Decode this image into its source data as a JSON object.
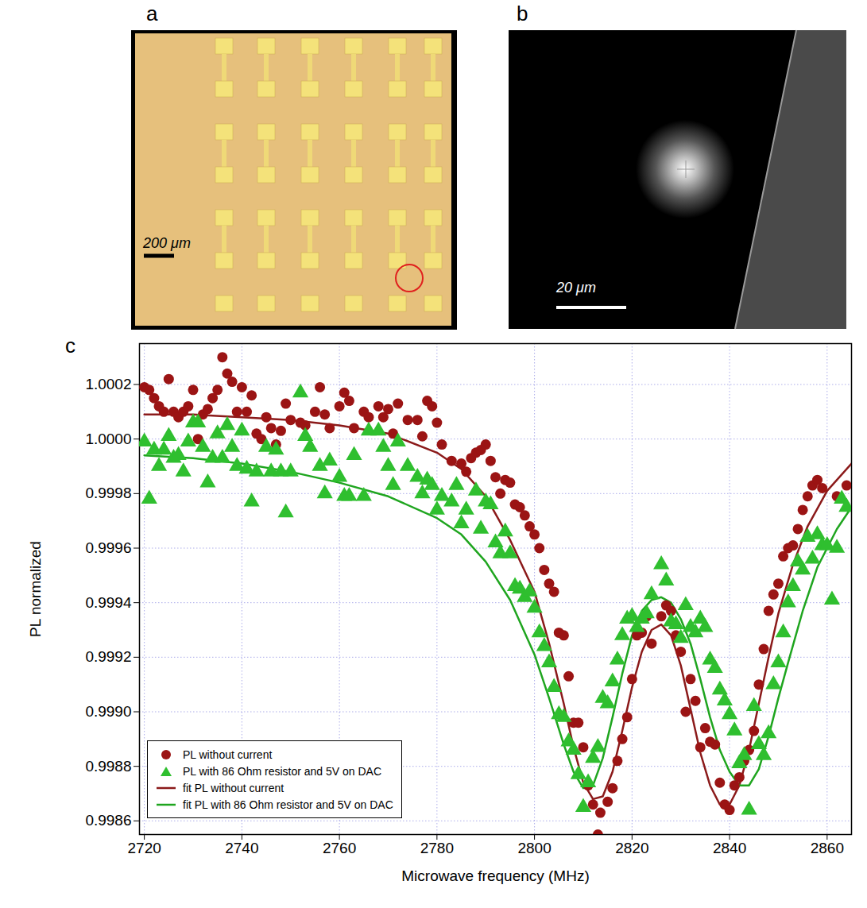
{
  "panels": [
    {
      "panel_label": "a",
      "scale_bar": "200 μm"
    },
    {
      "panel_label": "b",
      "scale_bar": "20 μm"
    }
  ],
  "chart_data": {
    "type": "scatter",
    "panel_label": "c",
    "x_label": "Microwave frequency (MHz)",
    "y_label": "PL normalized",
    "xlim": [
      2719,
      2865
    ],
    "ylim": [
      0.99855,
      1.00035
    ],
    "xticks": [
      2720,
      2740,
      2760,
      2780,
      2800,
      2820,
      2840,
      2860
    ],
    "yticks": [
      0.9986,
      0.9988,
      {
        "value": 0.999,
        "label": "0.9990"
      },
      0.9992,
      0.9994,
      0.9996,
      0.9998,
      {
        "value": 1,
        "label": "1.0000"
      },
      1.0002
    ],
    "grid": true,
    "legend": "lower left",
    "series": [
      {
        "name": "PL without current",
        "type": "scatter",
        "marker": "circle",
        "color": "#9b1414",
        "x": [
          2720,
          2721,
          2722,
          2723,
          2724,
          2725,
          2726,
          2727,
          2728,
          2729,
          2730,
          2731,
          2732,
          2733,
          2734,
          2735,
          2736,
          2737,
          2738,
          2739,
          2740,
          2741,
          2742,
          2743,
          2744,
          2745,
          2746,
          2747,
          2748,
          2749,
          2750,
          2752,
          2753,
          2755,
          2756,
          2757,
          2758,
          2760,
          2761,
          2762,
          2763,
          2765,
          2766,
          2768,
          2769,
          2770,
          2771,
          2772,
          2774,
          2776,
          2777,
          2778,
          2779,
          2780,
          2781,
          2783,
          2785,
          2786,
          2787,
          2788,
          2789,
          2790,
          2791,
          2792,
          2793,
          2794,
          2795,
          2796,
          2797,
          2798,
          2799,
          2800,
          2801,
          2802,
          2803,
          2804,
          2805,
          2806,
          2807,
          2808,
          2809,
          2810,
          2811,
          2812,
          2813,
          2813.5,
          2815,
          2816,
          2817,
          2818,
          2819,
          2820,
          2821,
          2822,
          2823,
          2824,
          2826,
          2827,
          2828,
          2829,
          2830,
          2831,
          2832,
          2833,
          2834,
          2835,
          2836,
          2837,
          2838,
          2839,
          2840,
          2841,
          2842,
          2843,
          2844,
          2845,
          2846,
          2847,
          2848,
          2849,
          2850,
          2851,
          2852,
          2853,
          2854,
          2855,
          2856,
          2857,
          2858,
          2859,
          2862,
          2864
        ],
        "values": [
          1.00019,
          1.00018,
          1.00015,
          1.00012,
          1.0001,
          1.00022,
          1.0001,
          1.00008,
          1.0001,
          1.00012,
          1.00018,
          1.0,
          1.00009,
          1.00011,
          1.00015,
          1.00018,
          1.0003,
          1.00024,
          1.00021,
          1.0001,
          1.00019,
          1.0001,
          1.00016,
          1.00002,
          1.0,
          1.00008,
          1.00004,
          0.99998,
          1.00003,
          1.00013,
          1.00007,
          1.00006,
          1.00005,
          1.0001,
          1.00019,
          1.00009,
          1.00004,
          1.00012,
          1.00017,
          1.00014,
          1.00004,
          1.0001,
          1.00008,
          1.00012,
          1.00008,
          1.00011,
          1.00002,
          1.00013,
          1.00007,
          1.00007,
          1.00001,
          1.00014,
          1.00012,
          1.00006,
          0.99998,
          0.99992,
          0.99991,
          0.99988,
          0.99993,
          0.99995,
          0.99996,
          0.99998,
          0.99992,
          0.99986,
          0.9998,
          0.99985,
          0.99984,
          0.99976,
          0.99975,
          0.99972,
          0.99968,
          0.99965,
          0.9996,
          0.99952,
          0.99947,
          0.99944,
          0.99929,
          0.99928,
          0.99913,
          0.99896,
          0.99896,
          0.99887,
          0.99873,
          0.99866,
          0.99855,
          0.99863,
          0.99867,
          0.99872,
          0.99882,
          0.9989,
          0.99898,
          0.99912,
          0.99928,
          0.99929,
          0.99935,
          0.99925,
          0.99935,
          0.99939,
          0.99937,
          0.99928,
          0.99922,
          0.999,
          0.99912,
          0.99904,
          0.99887,
          0.99894,
          0.99889,
          0.99888,
          0.99874,
          0.99866,
          0.99864,
          0.99873,
          0.99876,
          0.99882,
          0.99886,
          0.99893,
          0.9991,
          0.99923,
          0.99937,
          0.99943,
          0.99947,
          0.99957,
          0.9996,
          0.99961,
          0.99967,
          0.99974,
          0.99979,
          0.99983,
          0.99985,
          0.99982,
          0.99979,
          0.99983
        ]
      },
      {
        "name": "PL with 86 Ohm resistor and 5V on DAC",
        "type": "scatter",
        "marker": "triangle",
        "color": "#2fbf2f",
        "x": [
          2720,
          2721,
          2722,
          2723,
          2724,
          2725,
          2726,
          2727,
          2728,
          2729,
          2730,
          2731,
          2732,
          2733,
          2734,
          2735,
          2736,
          2737,
          2738,
          2739,
          2740,
          2741,
          2742,
          2743,
          2745,
          2746,
          2747,
          2748,
          2749,
          2750,
          2752,
          2753,
          2754,
          2756,
          2757,
          2758,
          2760,
          2761,
          2762,
          2763,
          2765,
          2766,
          2768,
          2769,
          2770,
          2771,
          2772,
          2774,
          2776,
          2777,
          2778,
          2779,
          2780,
          2781,
          2783,
          2784,
          2785,
          2786,
          2788,
          2789,
          2790,
          2791,
          2792,
          2793,
          2794,
          2795,
          2796,
          2797,
          2798,
          2799,
          2800,
          2801,
          2802,
          2803,
          2804,
          2805,
          2806,
          2807,
          2808,
          2809,
          2810,
          2811,
          2812,
          2813,
          2814,
          2815,
          2816,
          2817,
          2818,
          2819,
          2820,
          2821,
          2822,
          2823,
          2824,
          2826,
          2827,
          2828,
          2829,
          2830,
          2831,
          2832,
          2833,
          2834,
          2835,
          2836,
          2837,
          2838,
          2839,
          2840,
          2841,
          2842,
          2843,
          2844,
          2845,
          2846,
          2847,
          2848,
          2849,
          2850,
          2851,
          2852,
          2853,
          2854,
          2855,
          2856,
          2857,
          2858,
          2859,
          2860,
          2861,
          2862,
          2863,
          2864
        ],
        "values": [
          0.99999,
          0.99978,
          0.99996,
          0.9999,
          0.99996,
          1.00001,
          0.99993,
          0.99994,
          0.99988,
          0.99999,
          1.00006,
          1.00006,
          0.99997,
          0.99984,
          0.99993,
          1.00002,
          0.99993,
          1.00005,
          0.99997,
          0.9999,
          1.00003,
          0.99989,
          0.99977,
          0.99988,
          0.99997,
          0.99988,
          0.99996,
          0.99988,
          0.99973,
          0.99988,
          1.00017,
          1.00001,
          0.99997,
          0.9999,
          0.9998,
          0.99992,
          0.99986,
          0.99979,
          0.99979,
          0.99994,
          0.99979,
          1.00003,
          1.00003,
          0.99997,
          0.9999,
          0.99983,
          0.99999,
          0.9999,
          0.99986,
          0.9998,
          0.99985,
          0.99983,
          0.99974,
          0.99979,
          0.99977,
          0.99983,
          0.99969,
          0.99974,
          0.99981,
          0.99967,
          0.99977,
          0.99976,
          0.99962,
          0.99958,
          0.99966,
          0.99958,
          0.99946,
          0.99945,
          0.99942,
          0.99944,
          0.99938,
          0.99929,
          0.99924,
          0.99918,
          0.99909,
          0.99899,
          0.99898,
          0.99889,
          0.99886,
          0.99877,
          0.99865,
          0.99874,
          0.99883,
          0.99887,
          0.99905,
          0.99903,
          0.99911,
          0.99919,
          0.99928,
          0.99934,
          0.99935,
          0.99931,
          0.99934,
          0.99936,
          0.99943,
          0.99954,
          0.99948,
          0.99933,
          0.99932,
          0.99927,
          0.99939,
          0.99931,
          0.99929,
          0.99934,
          0.99931,
          0.99919,
          0.99916,
          0.99908,
          0.99904,
          0.99899,
          0.99893,
          0.99881,
          0.99884,
          0.99864,
          0.99902,
          0.99888,
          0.99884,
          0.99892,
          0.9991,
          0.99918,
          0.99929,
          0.9994,
          0.99946,
          0.99955,
          0.99952,
          0.99964,
          0.99956,
          0.99965,
          0.99961,
          0.99961,
          0.99941,
          0.9996,
          0.99978,
          0.99975
        ]
      },
      {
        "name": "fit PL without current",
        "type": "line",
        "line_style": "solid",
        "color": "#8b1a1a",
        "x": [
          2720,
          2730,
          2740,
          2750,
          2760,
          2770,
          2780,
          2785,
          2790,
          2795,
          2800,
          2803,
          2806,
          2808,
          2810,
          2812,
          2814,
          2816,
          2818,
          2820,
          2822,
          2824,
          2826,
          2828,
          2830,
          2832,
          2834,
          2836,
          2838,
          2840,
          2842,
          2844,
          2846,
          2848,
          2850,
          2853,
          2856,
          2860,
          2865
        ],
        "values": [
          1.00009,
          1.00009,
          1.00008,
          1.00007,
          1.00005,
          1.00002,
          0.99995,
          0.99989,
          0.99979,
          0.99963,
          0.99944,
          0.99925,
          0.99903,
          0.99887,
          0.99874,
          0.99868,
          0.99869,
          0.99878,
          0.99893,
          0.99909,
          0.99922,
          0.9993,
          0.99932,
          0.99928,
          0.99917,
          0.99901,
          0.99885,
          0.99873,
          0.99866,
          0.99866,
          0.99873,
          0.99886,
          0.99903,
          0.9992,
          0.99936,
          0.99954,
          0.99968,
          0.99981,
          0.99991
        ]
      },
      {
        "name": "fit PL with 86 Ohm resistor and 5V on DAC",
        "type": "line",
        "line_style": "solid",
        "color": "#1fa51f",
        "x": [
          2720,
          2730,
          2740,
          2750,
          2760,
          2770,
          2780,
          2785,
          2790,
          2795,
          2800,
          2803,
          2806,
          2808,
          2810,
          2812,
          2814,
          2816,
          2818,
          2820,
          2822,
          2824,
          2826,
          2828,
          2830,
          2832,
          2834,
          2836,
          2838,
          2840,
          2842,
          2844,
          2846,
          2848,
          2850,
          2852,
          2855,
          2858,
          2862,
          2865
        ],
        "values": [
          0.99994,
          0.99993,
          0.99991,
          0.99988,
          0.99984,
          0.99979,
          0.99971,
          0.99965,
          0.99955,
          0.99941,
          0.99921,
          0.99905,
          0.99888,
          0.99878,
          0.99872,
          0.99873,
          0.99883,
          0.99898,
          0.99914,
          0.99928,
          0.99937,
          0.99941,
          0.99942,
          0.9994,
          0.99934,
          0.99925,
          0.99912,
          0.99898,
          0.99886,
          0.99878,
          0.99873,
          0.99873,
          0.99879,
          0.99891,
          0.99905,
          0.99918,
          0.99937,
          0.99953,
          0.99967,
          0.99975
        ]
      }
    ]
  }
}
